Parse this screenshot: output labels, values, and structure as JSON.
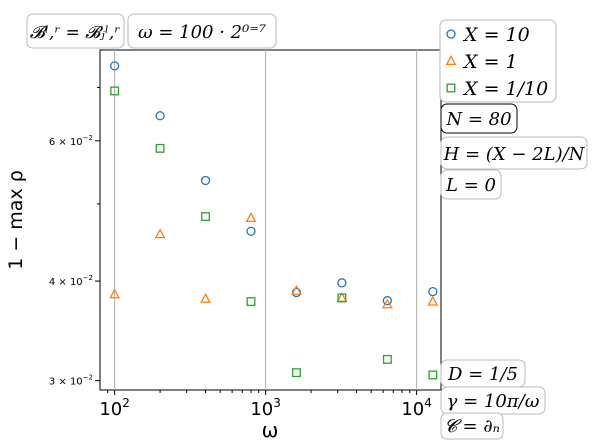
{
  "chart_data": {
    "type": "scatter",
    "xscale": "log",
    "yscale": "log",
    "xlabel": "ω",
    "ylabel": "1 − max ρ",
    "xlim": [
      80,
      14500
    ],
    "ylim": [
      0.0292,
      0.078
    ],
    "x": [
      100,
      200,
      400,
      800,
      1600,
      3200,
      6400,
      12800
    ],
    "x_ticks": [
      {
        "value": 100,
        "base": "10",
        "exp": "2"
      },
      {
        "value": 1000,
        "base": "10",
        "exp": "3"
      },
      {
        "value": 10000,
        "base": "10",
        "exp": "4"
      }
    ],
    "y_ticks": [
      {
        "value": 0.03,
        "mant": "3 × 10",
        "exp": "−2"
      },
      {
        "value": 0.04,
        "mant": "4 × 10",
        "exp": "−2"
      },
      {
        "value": 0.06,
        "mant": "6 × 10",
        "exp": "−2"
      }
    ],
    "vgrid": [
      100,
      1000,
      10000
    ],
    "series": [
      {
        "name": "X = 10",
        "marker": "circle",
        "color": "#1f77b4",
        "values": [
          0.0745,
          0.0645,
          0.0535,
          0.0462,
          0.0387,
          0.0398,
          0.0378,
          0.0388
        ]
      },
      {
        "name": "X = 1",
        "marker": "triangle",
        "color": "#ff7f0e",
        "values": [
          0.0385,
          0.0458,
          0.038,
          0.048,
          0.0389,
          0.0381,
          0.0374,
          0.0377
        ]
      },
      {
        "name": "X = 1/10",
        "marker": "square",
        "color": "#2ca02c",
        "values": [
          0.0693,
          0.0587,
          0.0482,
          0.0377,
          0.0307,
          0.0381,
          0.0319,
          0.0305
        ]
      }
    ]
  },
  "annotations": {
    "top_left": "𝓑ˡ,ʳ = 𝓑ⱼˡ,ʳ",
    "top_center": "ω = 100 · 2⁰⁼⁷",
    "n_box": "N = 80",
    "h_box": "H = (X − 2L)/N",
    "l_box": "L = 0",
    "d_box": "D = 1/5",
    "gamma_box": "γ = 10π/ω",
    "c_box": "𝓒 = ∂ₙ"
  }
}
